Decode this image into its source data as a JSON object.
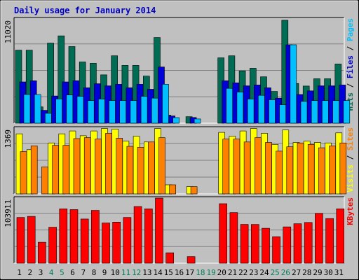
{
  "chart_data": {
    "type": "bar",
    "title": "Daily usage for January 2014",
    "categories": [
      "1",
      "2",
      "3",
      "4",
      "5",
      "6",
      "7",
      "8",
      "9",
      "10",
      "11",
      "12",
      "13",
      "14",
      "15",
      "16",
      "17",
      "18",
      "19",
      "20",
      "21",
      "22",
      "23",
      "24",
      "25",
      "26",
      "27",
      "28",
      "29",
      "30",
      "31"
    ],
    "weekend_days": [
      "4",
      "5",
      "11",
      "12",
      "18",
      "19",
      "25",
      "26"
    ],
    "colors": {
      "hits": "#006c54",
      "files": "#0000d8",
      "pages": "#00c0ff",
      "visits": "#ffff00",
      "sites": "#ff8000",
      "kbytes": "#ff0000",
      "weekend_label": "#00805c",
      "weekday_label": "#000000",
      "title": "#0000c0",
      "frame": "#c0c0c0",
      "plot_bg": "#c0c0c0"
    },
    "panels": [
      {
        "id": "hits",
        "max_label": "11020",
        "ymax": 11020,
        "legend": [
          {
            "text": "Hits",
            "color": "#006c54"
          },
          {
            "text": " / ",
            "color": "#000000"
          },
          {
            "text": "Files",
            "color": "#0000d8"
          },
          {
            "text": " / ",
            "color": "#000000"
          },
          {
            "text": "Pages",
            "color": "#00c0ff"
          }
        ],
        "series": [
          {
            "name": "Hits",
            "color": "#006c54",
            "values": [
              7720,
              7720,
              1720,
              8470,
              9230,
              8100,
              6470,
              6330,
              5110,
              7120,
              6110,
              6110,
              4980,
              9050,
              860,
              0,
              690,
              0,
              0,
              6910,
              7120,
              5530,
              5810,
              4900,
              3360,
              10880,
              4200,
              3930,
              4700,
              4700,
              6260
            ]
          },
          {
            "name": "Files",
            "color": "#0000d8",
            "values": [
              4360,
              4480,
              1360,
              2880,
              4360,
              4490,
              3740,
              4170,
              3950,
              4110,
              3740,
              4110,
              3590,
              5940,
              770,
              0,
              610,
              0,
              0,
              4480,
              4270,
              3950,
              4040,
              3740,
              2650,
              8280,
              3030,
              3420,
              3950,
              3950,
              4040
            ]
          },
          {
            "name": "Pages",
            "color": "#00c0ff",
            "values": [
              3030,
              3030,
              1040,
              2570,
              2980,
              2840,
              2390,
              2550,
              2390,
              2390,
              2390,
              2840,
              2650,
              4110,
              590,
              0,
              450,
              0,
              0,
              3680,
              3290,
              2550,
              2940,
              2480,
              1950,
              8280,
              2300,
              2390,
              2390,
              2390,
              2390
            ]
          }
        ]
      },
      {
        "id": "visits",
        "max_label": "1369",
        "ymax": 1369,
        "legend": [
          {
            "text": "Visits",
            "color": "#ffff00"
          },
          {
            "text": " / ",
            "color": "#000000"
          },
          {
            "text": "Sites",
            "color": "#ff8000"
          }
        ],
        "series": [
          {
            "name": "Visits",
            "color": "#ffff00",
            "values": [
              1250,
              920,
              0,
              1060,
              1250,
              1310,
              1210,
              1310,
              1360,
              1350,
              1100,
              1200,
              1080,
              1360,
              190,
              0,
              150,
              0,
              0,
              1280,
              1200,
              1310,
              1360,
              1260,
              1030,
              1330,
              1070,
              1100,
              1070,
              1060,
              1270
            ]
          },
          {
            "name": "Sites",
            "color": "#ff8000",
            "values": [
              880,
              1000,
              560,
              1010,
              1010,
              1150,
              1170,
              1140,
              1260,
              1160,
              990,
              970,
              1080,
              1170,
              190,
              0,
              150,
              0,
              0,
              1140,
              1140,
              1080,
              1170,
              1070,
              890,
              980,
              1060,
              1030,
              960,
              1000,
              1060
            ]
          }
        ]
      },
      {
        "id": "kbytes",
        "max_label": "103911",
        "ymax": 103911,
        "legend": [
          {
            "text": "KBytes",
            "color": "#ff0000"
          }
        ],
        "series": [
          {
            "name": "KBytes",
            "color": "#ff0000",
            "values": [
              73000,
              74800,
              33400,
              57400,
              86800,
              85600,
              70500,
              84300,
              64300,
              65600,
              73000,
              90500,
              86800,
              103911,
              16700,
              0,
              10500,
              0,
              0,
              95000,
              80800,
              61900,
              61800,
              55700,
              42400,
              58000,
              63000,
              65000,
              79500,
              71300,
              86800
            ]
          }
        ]
      }
    ]
  }
}
